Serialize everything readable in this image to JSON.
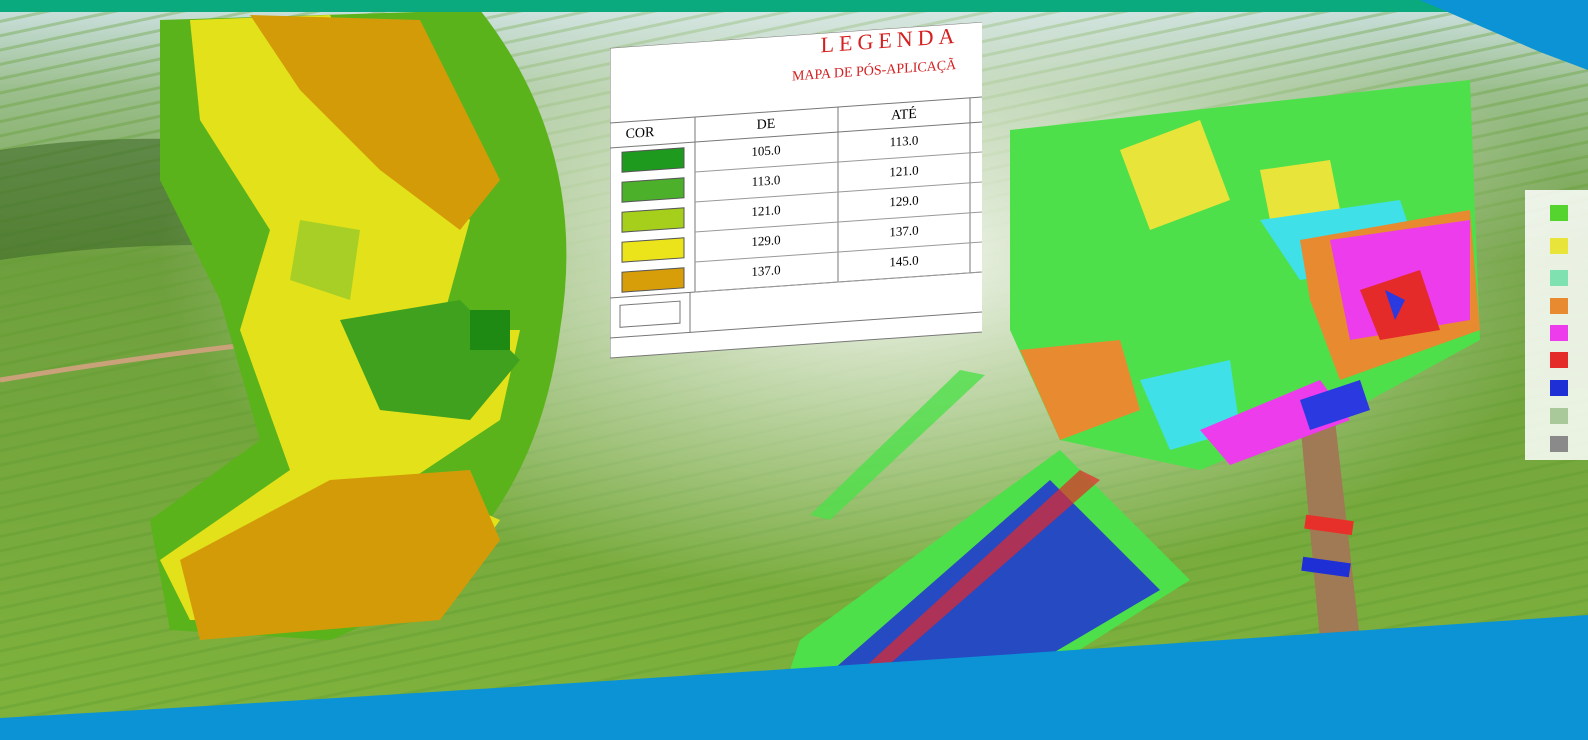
{
  "legend": {
    "title": "LEGENDA",
    "subtitle": "MAPA DE PÓS-APLICAÇÃ",
    "table": {
      "header": [
        "COR",
        "DE",
        "ATÉ"
      ],
      "rows": [
        [
          "105.0",
          "113.0"
        ],
        [
          "113.0",
          "121.0"
        ],
        [
          "121.0",
          "129.0"
        ],
        [
          "129.0",
          "137.0"
        ],
        [
          "137.0",
          "145.0"
        ]
      ]
    }
  }
}
